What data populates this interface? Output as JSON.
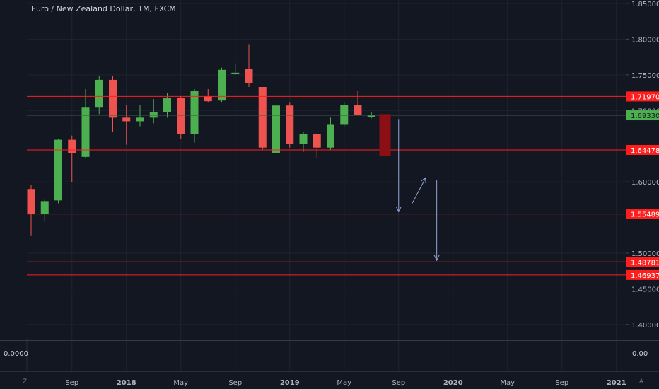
{
  "header": {
    "symbol": "Euro / New Zealand Dollar",
    "interval": "1M",
    "source": "FXCM"
  },
  "colors": {
    "background": "#131722",
    "grid": "#1f2330",
    "up": "#4caf50",
    "down": "#ef5350",
    "level_line": "#ff1e1e",
    "last_price": "#4caf50",
    "forecast_box": "#8b0f14",
    "arrow": "#8fa7d6"
  },
  "chart_data": {
    "type": "candlestick",
    "title": "Euro / New Zealand Dollar, 1M, FXCM",
    "y_range": [
      1.38,
      1.85
    ],
    "y_ticks": [
      {
        "value": 1.85,
        "label": "1.85000"
      },
      {
        "value": 1.8,
        "label": "1.80000"
      },
      {
        "value": 1.75,
        "label": "1.75000"
      },
      {
        "value": 1.7,
        "label": "1.70000"
      },
      {
        "value": 1.6,
        "label": "1.60000"
      },
      {
        "value": 1.5,
        "label": "1.50000"
      },
      {
        "value": 1.45,
        "label": "1.45000"
      },
      {
        "value": 1.4,
        "label": "1.40000"
      }
    ],
    "x_ticks": [
      {
        "index": 3,
        "label": "Sep",
        "bold": false
      },
      {
        "index": 7,
        "label": "2018",
        "bold": true
      },
      {
        "index": 11,
        "label": "May",
        "bold": false
      },
      {
        "index": 15,
        "label": "Sep",
        "bold": false
      },
      {
        "index": 19,
        "label": "2019",
        "bold": true
      },
      {
        "index": 23,
        "label": "May",
        "bold": false
      },
      {
        "index": 27,
        "label": "Sep",
        "bold": false
      },
      {
        "index": 31,
        "label": "2020",
        "bold": true
      },
      {
        "index": 35,
        "label": "May",
        "bold": false
      },
      {
        "index": 39,
        "label": "Sep",
        "bold": false
      },
      {
        "index": 43,
        "label": "2021",
        "bold": true
      }
    ],
    "candles": [
      {
        "o": 1.59,
        "h": 1.596,
        "l": 1.525,
        "c": 1.555
      },
      {
        "o": 1.555,
        "h": 1.575,
        "l": 1.544,
        "c": 1.573
      },
      {
        "o": 1.574,
        "h": 1.66,
        "l": 1.57,
        "c": 1.659
      },
      {
        "o": 1.659,
        "h": 1.665,
        "l": 1.6,
        "c": 1.64
      },
      {
        "o": 1.635,
        "h": 1.73,
        "l": 1.633,
        "c": 1.705
      },
      {
        "o": 1.705,
        "h": 1.748,
        "l": 1.695,
        "c": 1.743
      },
      {
        "o": 1.743,
        "h": 1.748,
        "l": 1.67,
        "c": 1.69
      },
      {
        "o": 1.69,
        "h": 1.708,
        "l": 1.652,
        "c": 1.685
      },
      {
        "o": 1.685,
        "h": 1.708,
        "l": 1.678,
        "c": 1.69
      },
      {
        "o": 1.69,
        "h": 1.716,
        "l": 1.682,
        "c": 1.698
      },
      {
        "o": 1.698,
        "h": 1.725,
        "l": 1.69,
        "c": 1.718
      },
      {
        "o": 1.718,
        "h": 1.72,
        "l": 1.66,
        "c": 1.667
      },
      {
        "o": 1.667,
        "h": 1.73,
        "l": 1.655,
        "c": 1.728
      },
      {
        "o": 1.72,
        "h": 1.73,
        "l": 1.712,
        "c": 1.713
      },
      {
        "o": 1.714,
        "h": 1.76,
        "l": 1.712,
        "c": 1.757
      },
      {
        "o": 1.752,
        "h": 1.766,
        "l": 1.75,
        "c": 1.753
      },
      {
        "o": 1.758,
        "h": 1.793,
        "l": 1.733,
        "c": 1.738
      },
      {
        "o": 1.733,
        "h": 1.733,
        "l": 1.645,
        "c": 1.648
      },
      {
        "o": 1.64,
        "h": 1.71,
        "l": 1.635,
        "c": 1.707
      },
      {
        "o": 1.707,
        "h": 1.712,
        "l": 1.648,
        "c": 1.653
      },
      {
        "o": 1.653,
        "h": 1.67,
        "l": 1.642,
        "c": 1.667
      },
      {
        "o": 1.667,
        "h": 1.668,
        "l": 1.633,
        "c": 1.648
      },
      {
        "o": 1.648,
        "h": 1.69,
        "l": 1.645,
        "c": 1.68
      },
      {
        "o": 1.68,
        "h": 1.712,
        "l": 1.678,
        "c": 1.708
      },
      {
        "o": 1.708,
        "h": 1.728,
        "l": 1.693,
        "c": 1.693
      },
      {
        "o": 1.691,
        "h": 1.698,
        "l": 1.689,
        "c": 1.694
      }
    ],
    "levels": [
      {
        "value": 1.7197,
        "label": "1.71970",
        "style": "red"
      },
      {
        "value": 1.6933,
        "label": "1.69330",
        "style": "last"
      },
      {
        "value": 1.64478,
        "label": "1.64478",
        "style": "red"
      },
      {
        "value": 1.55489,
        "label": "1.55489",
        "style": "red"
      },
      {
        "value": 1.48781,
        "label": "1.48781",
        "style": "red"
      },
      {
        "value": 1.46937,
        "label": "1.46937",
        "style": "red"
      }
    ],
    "forecast_box": {
      "index": 26,
      "top": 1.695,
      "bottom": 1.636
    },
    "arrows": [
      {
        "from": {
          "i": 27.0,
          "v": 1.688
        },
        "to": {
          "i": 27.0,
          "v": 1.558
        }
      },
      {
        "from": {
          "i": 28.0,
          "v": 1.57
        },
        "to": {
          "i": 29.0,
          "v": 1.606
        }
      },
      {
        "from": {
          "i": 29.8,
          "v": 1.602
        },
        "to": {
          "i": 29.8,
          "v": 1.49
        }
      }
    ]
  },
  "oscillator": {
    "left_value": "0.0000",
    "right_value": "0.00"
  },
  "corners": {
    "left": "Z",
    "right": "A"
  }
}
